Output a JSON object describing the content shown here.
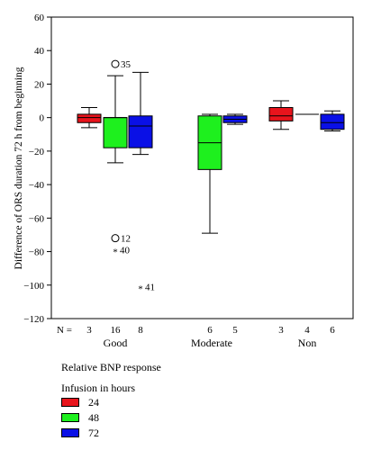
{
  "chart_data": {
    "type": "box",
    "ylabel": "Difference of ORS duration 72 h from beginning",
    "ylim": [
      -120,
      60
    ],
    "yticks": [
      60,
      40,
      20,
      0,
      -20,
      -40,
      -60,
      -80,
      -100,
      -120
    ],
    "n_label": "N =",
    "groups": [
      "Good",
      "Moderate",
      "Non"
    ],
    "legend_title_1": "Relative BNP response",
    "legend_title_2": "Infusion in hours",
    "series": [
      {
        "name": "24",
        "color": "#e8141c"
      },
      {
        "name": "48",
        "color": "#1ef01e"
      },
      {
        "name": "72",
        "color": "#0a10e6"
      }
    ],
    "boxes": [
      {
        "group": "Good",
        "series": "24",
        "n": "3",
        "q1": -3,
        "median": 0,
        "q3": 2,
        "whisker_low": -6,
        "whisker_high": 6
      },
      {
        "group": "Good",
        "series": "48",
        "n": "16",
        "q1": -18,
        "median": 0,
        "q3": 0,
        "whisker_low": -27,
        "whisker_high": 25
      },
      {
        "group": "Good",
        "series": "72",
        "n": "8",
        "q1": -18,
        "median": -5,
        "q3": 1,
        "whisker_low": -22,
        "whisker_high": 27
      },
      {
        "group": "Moderate",
        "series": "48",
        "n": "6",
        "q1": -31,
        "median": -15,
        "q3": 1,
        "whisker_low": -69,
        "whisker_high": 2
      },
      {
        "group": "Moderate",
        "series": "72",
        "n": "5",
        "q1": -3,
        "median": -1,
        "q3": 1,
        "whisker_low": -4,
        "whisker_high": 2
      },
      {
        "group": "Non",
        "series": "24",
        "n": "3",
        "q1": -2,
        "median": 1,
        "q3": 6,
        "whisker_low": -7,
        "whisker_high": 10
      },
      {
        "group": "Non",
        "series": "48",
        "n": "4",
        "q1": 2,
        "median": 2,
        "q3": 2,
        "whisker_low": 2,
        "whisker_high": 2
      },
      {
        "group": "Non",
        "series": "72",
        "n": "6",
        "q1": -7,
        "median": -3,
        "q3": 2,
        "whisker_low": -8,
        "whisker_high": 4
      }
    ],
    "outliers": [
      {
        "series": "48",
        "group": "Good",
        "value": 32,
        "marker": "circle",
        "label": "35"
      },
      {
        "series": "48",
        "group": "Good",
        "value": -72,
        "marker": "circle",
        "label": "12"
      },
      {
        "series": "48",
        "group": "Good",
        "value": -79,
        "marker": "star",
        "label": "40"
      },
      {
        "series": "72",
        "group": "Good",
        "value": -101,
        "marker": "star",
        "label": "41"
      }
    ]
  }
}
